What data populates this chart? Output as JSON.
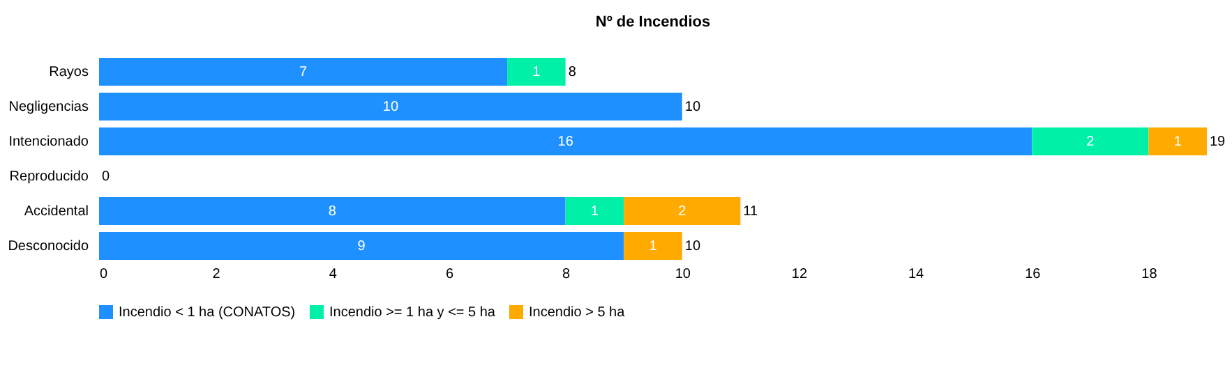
{
  "chart_data": {
    "type": "bar",
    "orientation": "horizontal",
    "stacked": true,
    "title": "Nº de Incendios",
    "categories": [
      "Rayos",
      "Negligencias",
      "Intencionado",
      "Reproducido",
      "Accidental",
      "Desconocido"
    ],
    "series": [
      {
        "name": "Incendio < 1 ha (CONATOS)",
        "color": "#1e90ff",
        "values": [
          7,
          10,
          16,
          null,
          8,
          9
        ]
      },
      {
        "name": "Incendio >= 1 ha y <= 5 ha",
        "color": "#00f0a8",
        "values": [
          1,
          null,
          2,
          null,
          1,
          null
        ]
      },
      {
        "name": "Incendio > 5 ha",
        "color": "#ffaa00",
        "values": [
          null,
          null,
          1,
          null,
          2,
          1
        ]
      }
    ],
    "xlim": [
      0,
      19
    ],
    "xticks": [
      0,
      2,
      4,
      6,
      8,
      10,
      12,
      14,
      16,
      18
    ],
    "data_labels": true,
    "totals": [
      "8",
      "10",
      "19",
      "0",
      "11",
      "10"
    ],
    "grid": false,
    "legend": "bottom"
  }
}
